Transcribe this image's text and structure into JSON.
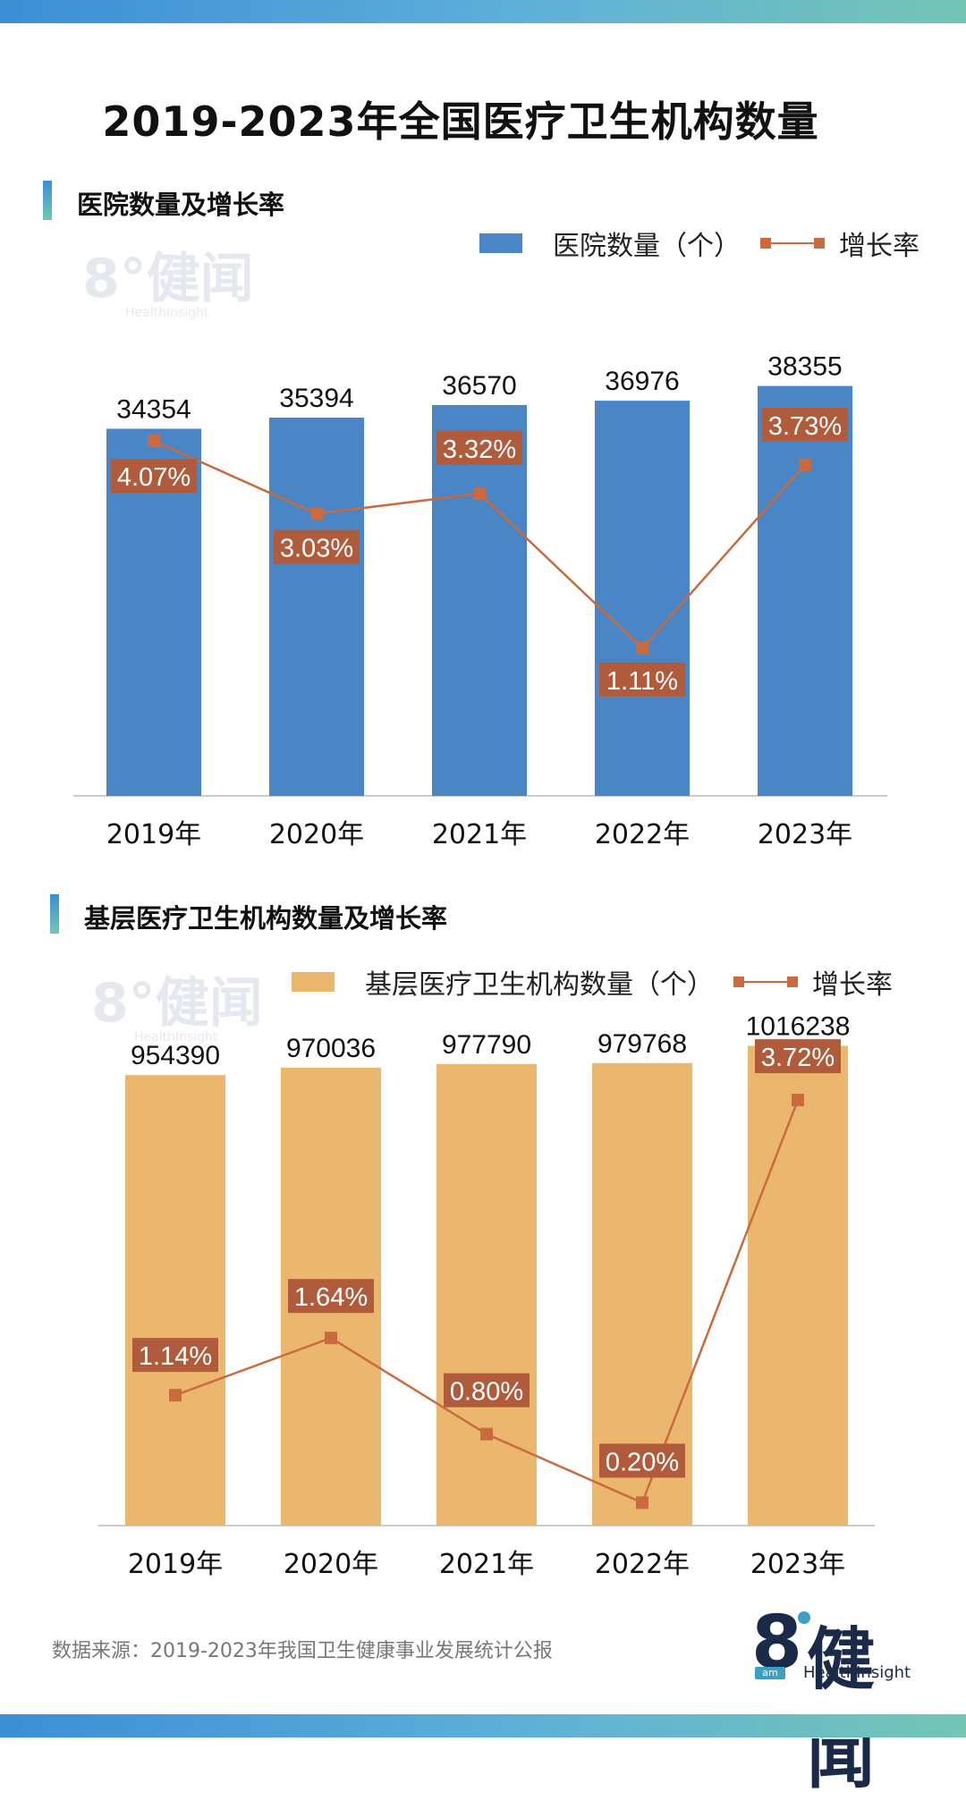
{
  "main_title": "2019-2023年全国医疗卫生机构数量",
  "section1": {
    "title": "医院数量及增长率",
    "legend_bar": "医院数量（个）",
    "legend_line": "增长率"
  },
  "section2": {
    "title": "基层医疗卫生机构数量及增长率",
    "legend_bar": "基层医疗卫生机构数量（个）",
    "legend_line": "增长率"
  },
  "watermark": {
    "cn": "8°健闻",
    "en": "HealthInsight"
  },
  "source": "数据来源：2019-2023年我国卫生健康事业发展统计公报",
  "logo": {
    "eight": "8",
    "cn": "健闻",
    "en": "HealthInsight",
    "badge": "am"
  },
  "colors": {
    "hospital_bar": "#4a86c5",
    "primary_bar": "#ebb66e",
    "line": "#c96a3f",
    "label_bg": "#b05c3c",
    "top_gradient": "#3b8fd6"
  },
  "chart_data": [
    {
      "type": "bar",
      "categories": [
        "2019年",
        "2020年",
        "2021年",
        "2022年",
        "2023年"
      ],
      "series": [
        {
          "name": "医院数量（个）",
          "type": "bar",
          "values": [
            34354,
            35394,
            36570,
            36976,
            38355
          ],
          "labels": [
            "34354",
            "35394",
            "36570",
            "36976",
            "38355"
          ]
        },
        {
          "name": "增长率",
          "type": "line",
          "values": [
            4.07,
            3.03,
            3.32,
            1.11,
            3.73
          ],
          "labels": [
            "4.07%",
            "3.03%",
            "3.32%",
            "1.11%",
            "3.73%"
          ]
        }
      ],
      "bar_ylim": [
        0,
        41000
      ],
      "line_ylim": [
        -1,
        5.26
      ]
    },
    {
      "type": "bar",
      "categories": [
        "2019年",
        "2020年",
        "2021年",
        "2022年",
        "2023年"
      ],
      "series": [
        {
          "name": "基层医疗卫生机构数量（个）",
          "type": "bar",
          "values": [
            954390,
            970036,
            977790,
            979768,
            1016238
          ],
          "labels": [
            "954390",
            "970036",
            "977790",
            "979768",
            "1016238"
          ]
        },
        {
          "name": "增长率",
          "type": "line",
          "values": [
            1.14,
            1.64,
            0.8,
            0.2,
            3.72
          ],
          "labels": [
            "1.14%",
            "1.64%",
            "0.80%",
            "0.20%",
            "3.72%"
          ]
        }
      ],
      "bar_ylim": [
        0,
        1076000
      ],
      "line_ylim": [
        0,
        4.44
      ]
    }
  ]
}
